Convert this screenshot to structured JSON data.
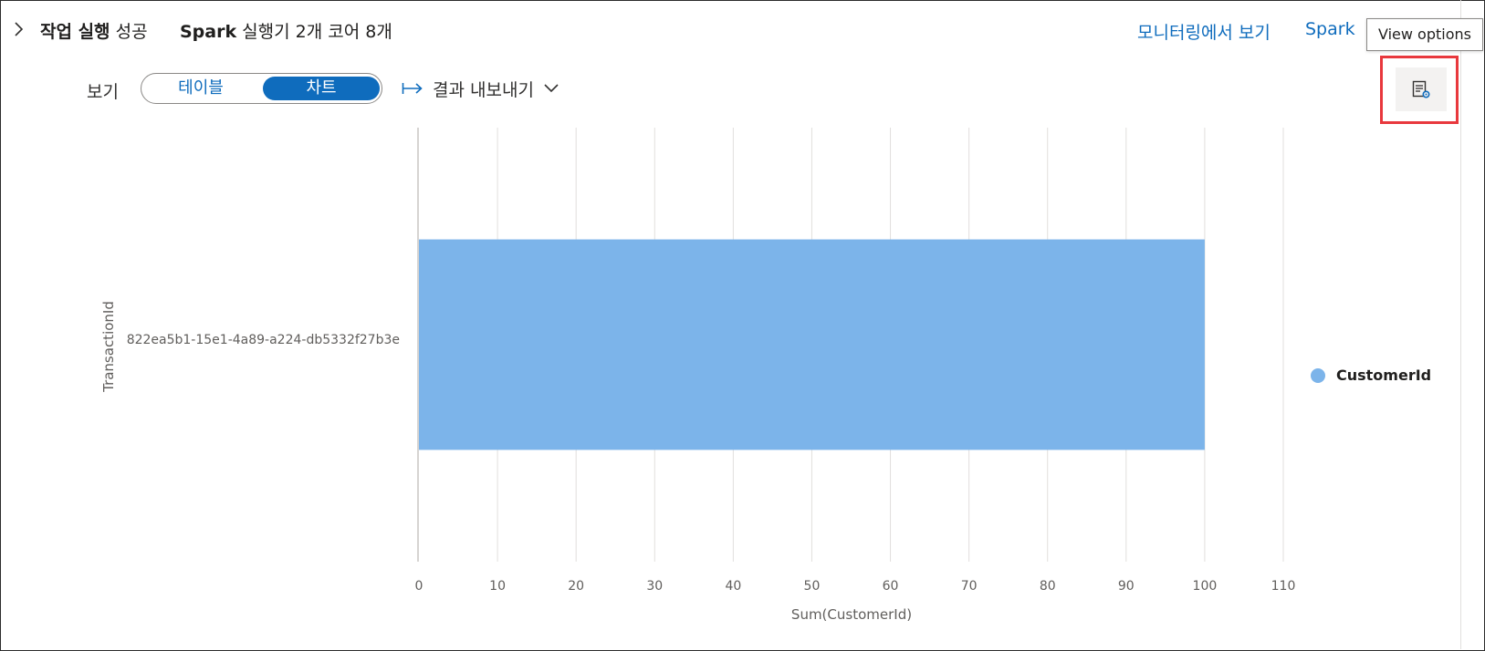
{
  "header": {
    "status_bold": "작업 실행",
    "status_text": " 성공",
    "spark_bold": "Spark",
    "spark_text": " 실행기 2개 코어 8개",
    "monitor_link": "모니터링에서 보기",
    "spark_link": "Spark",
    "tooltip": "View options"
  },
  "toolbar": {
    "view_label": "보기",
    "table_option": "테이블",
    "chart_option": "차트",
    "export_label": "결과 내보내기"
  },
  "colors": {
    "accent": "#0f6cbd",
    "bar": "#7cb4ea",
    "highlight": "#e8383d"
  },
  "icons": {
    "expand": "chevron-right-icon",
    "export": "arrow-to-right-icon",
    "export_menu": "chevron-down-icon",
    "view_options": "view-options-icon"
  },
  "chart_data": {
    "type": "bar",
    "orientation": "horizontal",
    "categories": [
      "822ea5b1-15e1-4a89-a224-db5332f27b3e"
    ],
    "series": [
      {
        "name": "CustomerId",
        "values": [
          100
        ]
      }
    ],
    "xlabel": "Sum(CustomerId)",
    "ylabel": "TransactionId",
    "xlim": [
      0,
      110
    ],
    "xticks": [
      0,
      10,
      20,
      30,
      40,
      50,
      60,
      70,
      80,
      90,
      100,
      110
    ],
    "grid": true,
    "legend_position": "right"
  }
}
